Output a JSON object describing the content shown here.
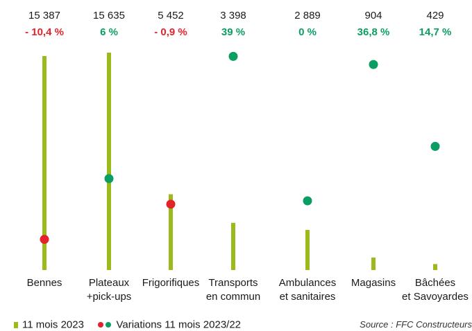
{
  "chart_data": {
    "type": "bar",
    "categories": [
      [
        "Bennes"
      ],
      [
        "Plateaux",
        "+pick-ups"
      ],
      [
        "Frigorifiques"
      ],
      [
        "Transports",
        "en commun"
      ],
      [
        "Ambulances",
        "et sanitaires"
      ],
      [
        "Magasins"
      ],
      [
        "Bâchées",
        "et Savoyardes"
      ]
    ],
    "series": [
      {
        "name": "11 mois 2023",
        "values": [
          15387,
          15635,
          5452,
          3398,
          2889,
          904,
          429
        ],
        "value_labels": [
          "15 387",
          "15 635",
          "5 452",
          "3 398",
          "2 889",
          "904",
          "429"
        ],
        "color": "#9bbb1c"
      },
      {
        "name": "Variations 11 mois 2023/22",
        "values": [
          -10.4,
          6,
          -0.9,
          39,
          0,
          36.8,
          14.7
        ],
        "value_labels": [
          "- 10,4 %",
          "6 %",
          "- 0,9 %",
          "39 %",
          "0 %",
          "36,8  %",
          "14,7 %"
        ],
        "positive_color": "#0a9e63",
        "negative_color": "#e3232a"
      }
    ],
    "source": "Source : FFC Constructeurs"
  }
}
